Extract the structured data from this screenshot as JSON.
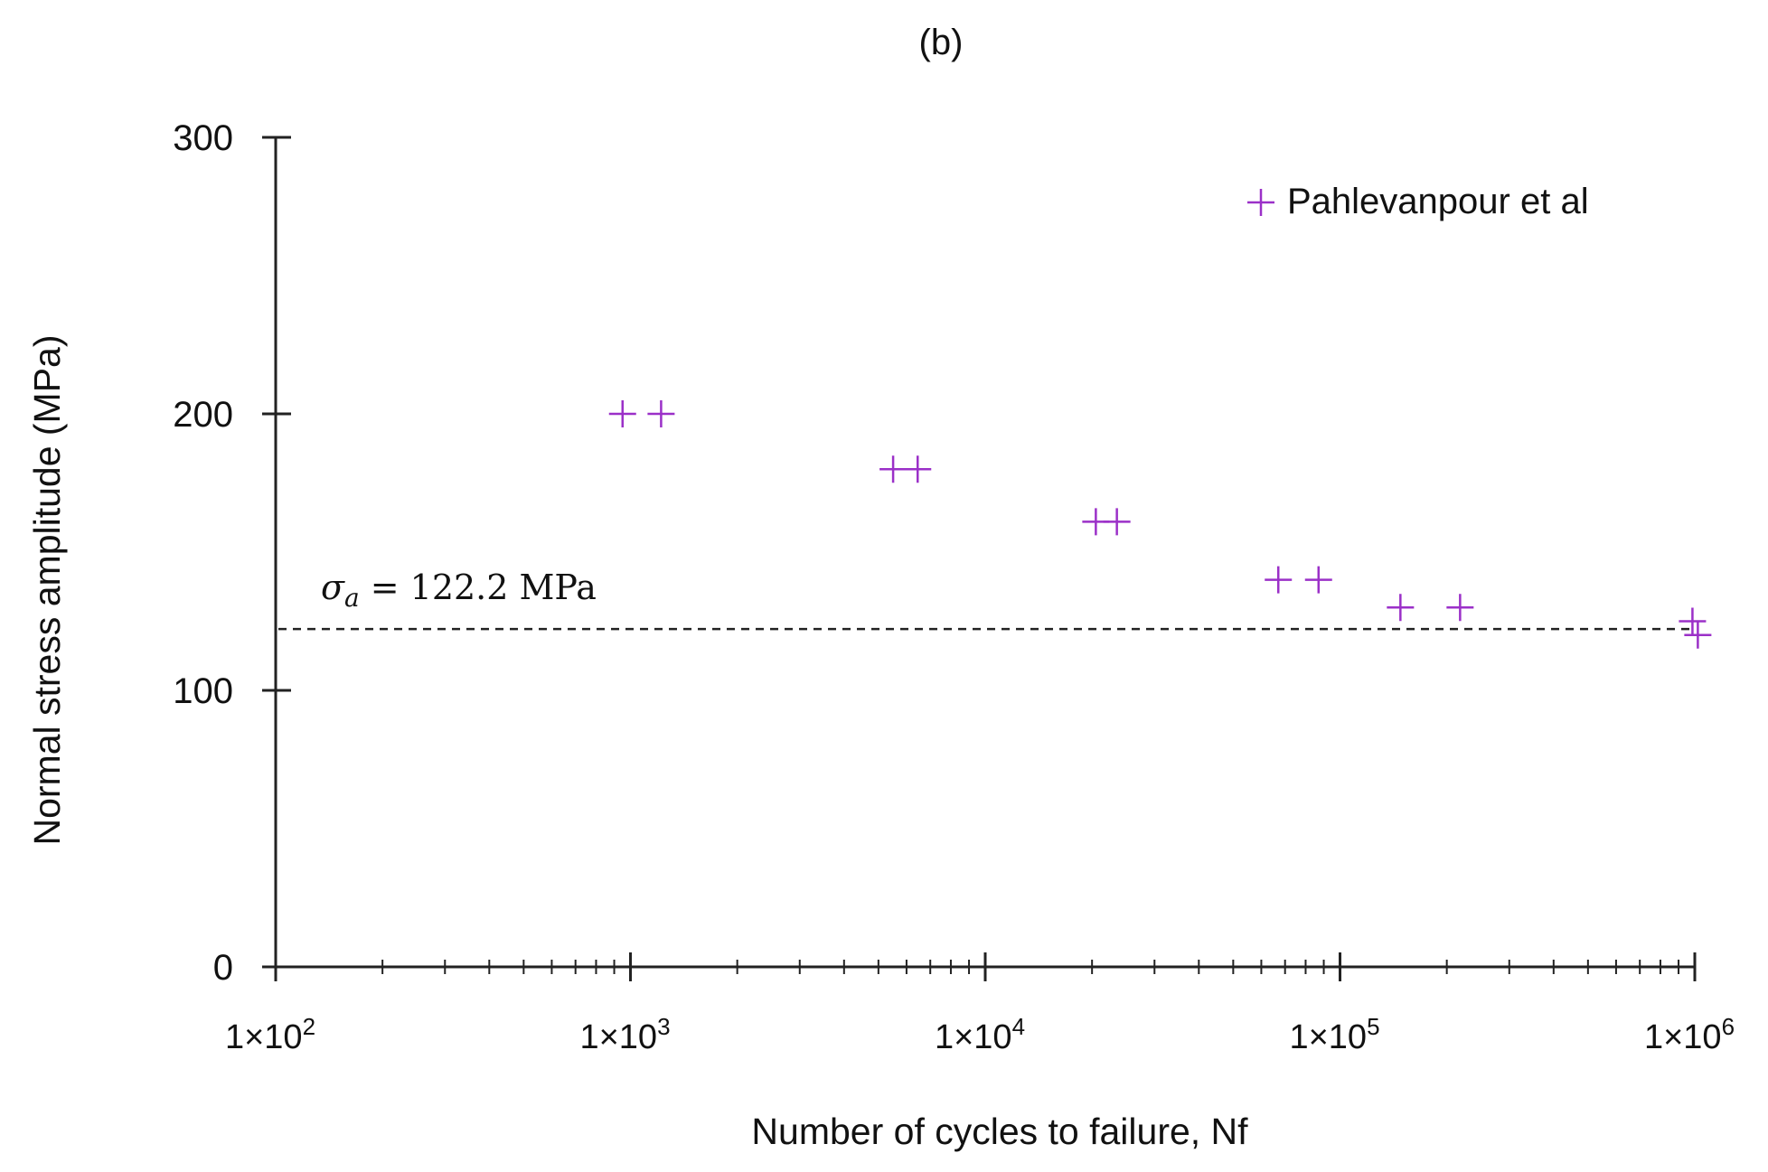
{
  "chart_data": {
    "type": "scatter",
    "title": "(b)",
    "xlabel": "Number  of cycles to failure, Nf",
    "ylabel": "Normal  stress amplitude (MPa)",
    "x_scale": "log",
    "xlim": [
      100,
      1000000
    ],
    "ylim": [
      0,
      300
    ],
    "x_ticks": [
      100,
      1000,
      10000,
      100000,
      1000000
    ],
    "x_tick_labels": [
      {
        "base": "1×10",
        "exp": "2"
      },
      {
        "base": "1×10",
        "exp": "3"
      },
      {
        "base": "1×10",
        "exp": "4"
      },
      {
        "base": "1×10",
        "exp": "5"
      },
      {
        "base": "1×10",
        "exp": "6"
      }
    ],
    "y_ticks": [
      0,
      100,
      200,
      300
    ],
    "y_tick_labels": [
      "0",
      "100",
      "200",
      "300"
    ],
    "grid": false,
    "legend_position": "top-right",
    "series": [
      {
        "name": "Pahlevanpour et al",
        "marker": "plus",
        "color": "#9B30C8",
        "points": [
          {
            "x": 950,
            "y": 200
          },
          {
            "x": 1220,
            "y": 200
          },
          {
            "x": 5500,
            "y": 180
          },
          {
            "x": 6450,
            "y": 180
          },
          {
            "x": 20500,
            "y": 161
          },
          {
            "x": 23500,
            "y": 161
          },
          {
            "x": 67000,
            "y": 140
          },
          {
            "x": 87000,
            "y": 140
          },
          {
            "x": 148000,
            "y": 130
          },
          {
            "x": 218000,
            "y": 130
          },
          {
            "x": 985000,
            "y": 125
          },
          {
            "x": 1020000,
            "y": 120
          }
        ]
      }
    ],
    "reference_line": {
      "y": 122.2,
      "style": "dashed",
      "label_symbol": "σ",
      "label_subscript": "a",
      "label_value": " = 122.2 MPa"
    }
  }
}
